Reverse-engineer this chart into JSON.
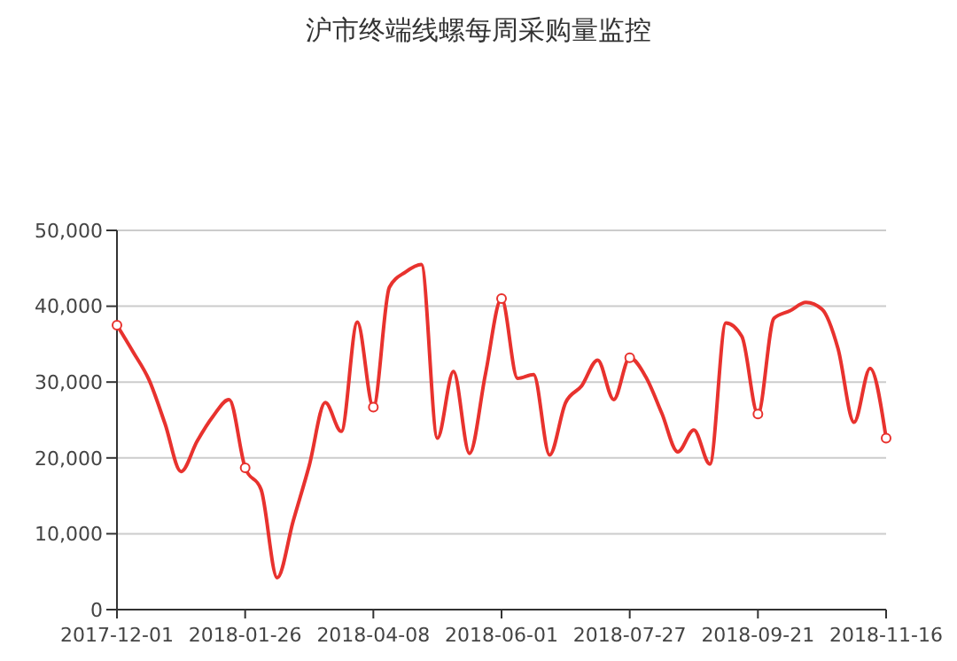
{
  "chart_data": {
    "type": "line",
    "title": "沪市终端线螺每周采购量监控",
    "categories": [
      "2017-12-01",
      null,
      null,
      null,
      null,
      null,
      null,
      null,
      "2018-01-26",
      null,
      null,
      null,
      null,
      null,
      null,
      null,
      "2018-04-08",
      null,
      null,
      null,
      null,
      null,
      null,
      null,
      "2018-06-01",
      null,
      null,
      null,
      null,
      null,
      null,
      null,
      "2018-07-27",
      null,
      null,
      null,
      null,
      null,
      null,
      null,
      "2018-09-21",
      null,
      null,
      null,
      null,
      null,
      null,
      null,
      "2018-11-16"
    ],
    "series": [
      {
        "color": "#e8322e",
        "values": [
          37500,
          34000,
          30300,
          24500,
          18200,
          22200,
          25500,
          27700,
          18700,
          15800,
          4200,
          11700,
          19000,
          27300,
          23500,
          37900,
          26700,
          42500,
          44500,
          45500,
          22600,
          31400,
          20600,
          31100,
          41000,
          30500,
          31000,
          20400,
          27300,
          29500,
          32900,
          27700,
          33200,
          30700,
          25900,
          20800,
          23700,
          19200,
          37800,
          36000,
          25800,
          38400,
          39400,
          40500,
          39600,
          34400,
          24700,
          31800,
          22600
        ]
      }
    ],
    "ylim": [
      0,
      50000
    ],
    "yticks": [
      0,
      {
        "value": 10000,
        "label": "10,000"
      },
      {
        "value": 20000,
        "label": "20,000"
      },
      {
        "value": 30000,
        "label": "30,000"
      },
      {
        "value": 40000,
        "label": "40,000"
      },
      {
        "value": 50000,
        "label": "50,000"
      }
    ],
    "grid": "y",
    "line_style": "solid"
  }
}
